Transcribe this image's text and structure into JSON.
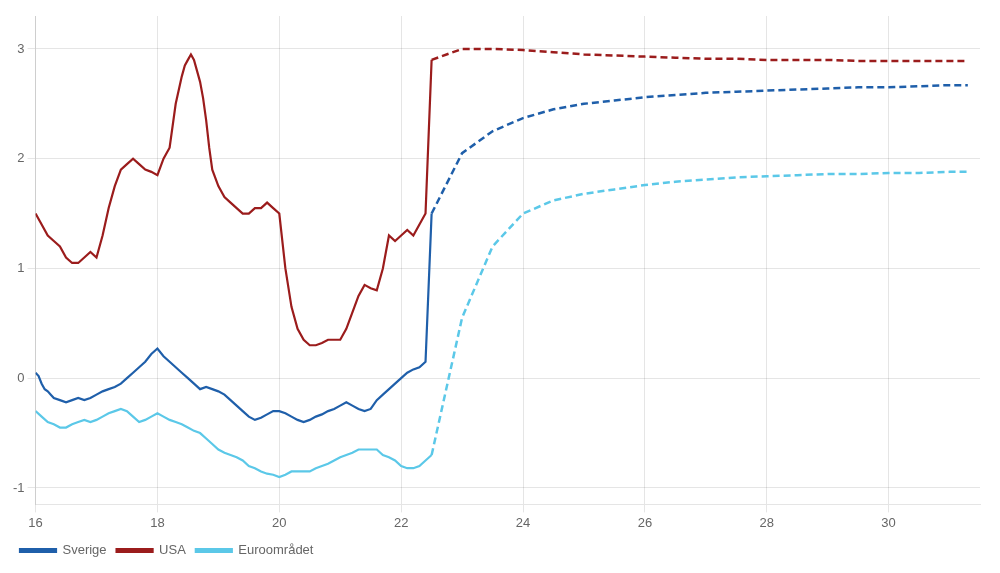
{
  "chart_data": {
    "type": "line",
    "xlim": [
      16,
      31.5
    ],
    "ylim": [
      -1.15,
      3.3
    ],
    "xticks": [
      16,
      18,
      20,
      22,
      24,
      26,
      28,
      30
    ],
    "yticks": [
      -1,
      0,
      1,
      2,
      3
    ],
    "grid": true,
    "legend": "bottom",
    "series": [
      {
        "name": "Sverige",
        "color": "#1f5faa",
        "line_style": "solid",
        "x": [
          16.0,
          16.05,
          16.1,
          16.15,
          16.2,
          16.25,
          16.3,
          16.4,
          16.5,
          16.6,
          16.7,
          16.8,
          16.9,
          17.0,
          17.1,
          17.2,
          17.3,
          17.4,
          17.5,
          17.6,
          17.7,
          17.8,
          17.9,
          18.0,
          18.1,
          18.2,
          18.3,
          18.4,
          18.5,
          18.6,
          18.7,
          18.8,
          18.9,
          19.0,
          19.1,
          19.2,
          19.3,
          19.4,
          19.5,
          19.6,
          19.7,
          19.8,
          19.9,
          20.0,
          20.1,
          20.2,
          20.3,
          20.4,
          20.5,
          20.6,
          20.7,
          20.8,
          20.9,
          21.0,
          21.1,
          21.2,
          21.3,
          21.4,
          21.5,
          21.6,
          21.7,
          21.8,
          21.9,
          22.0,
          22.1,
          22.2,
          22.3,
          22.4,
          22.5
        ],
        "values": [
          0.05,
          0.02,
          -0.05,
          -0.1,
          -0.12,
          -0.15,
          -0.18,
          -0.2,
          -0.22,
          -0.2,
          -0.18,
          -0.2,
          -0.18,
          -0.15,
          -0.12,
          -0.1,
          -0.08,
          -0.05,
          0.0,
          0.05,
          0.1,
          0.15,
          0.22,
          0.27,
          0.2,
          0.15,
          0.1,
          0.05,
          0.0,
          -0.05,
          -0.1,
          -0.08,
          -0.1,
          -0.12,
          -0.15,
          -0.2,
          -0.25,
          -0.3,
          -0.35,
          -0.38,
          -0.36,
          -0.33,
          -0.3,
          -0.3,
          -0.32,
          -0.35,
          -0.38,
          -0.4,
          -0.38,
          -0.35,
          -0.33,
          -0.3,
          -0.28,
          -0.25,
          -0.22,
          -0.25,
          -0.28,
          -0.3,
          -0.28,
          -0.2,
          -0.15,
          -0.1,
          -0.05,
          0.0,
          0.05,
          0.08,
          0.1,
          0.15,
          1.5
        ]
      },
      {
        "name": "USA",
        "color": "#9b1c1c",
        "line_style": "solid",
        "x": [
          16.0,
          16.1,
          16.2,
          16.3,
          16.4,
          16.5,
          16.6,
          16.7,
          16.8,
          16.9,
          17.0,
          17.1,
          17.2,
          17.3,
          17.4,
          17.5,
          17.6,
          17.7,
          17.8,
          17.9,
          18.0,
          18.1,
          18.2,
          18.3,
          18.4,
          18.45,
          18.5,
          18.55,
          18.6,
          18.65,
          18.7,
          18.75,
          18.8,
          18.85,
          18.9,
          19.0,
          19.1,
          19.2,
          19.3,
          19.4,
          19.5,
          19.6,
          19.7,
          19.8,
          19.9,
          20.0,
          20.1,
          20.2,
          20.3,
          20.4,
          20.5,
          20.6,
          20.7,
          20.8,
          20.9,
          21.0,
          21.1,
          21.2,
          21.3,
          21.4,
          21.5,
          21.6,
          21.7,
          21.8,
          21.9,
          22.0,
          22.1,
          22.2,
          22.3,
          22.4,
          22.5
        ],
        "values": [
          1.5,
          1.4,
          1.3,
          1.25,
          1.2,
          1.1,
          1.05,
          1.05,
          1.1,
          1.15,
          1.1,
          1.3,
          1.55,
          1.75,
          1.9,
          1.95,
          2.0,
          1.95,
          1.9,
          1.88,
          1.85,
          2.0,
          2.1,
          2.5,
          2.75,
          2.85,
          2.9,
          2.95,
          2.9,
          2.8,
          2.7,
          2.55,
          2.35,
          2.1,
          1.9,
          1.75,
          1.65,
          1.6,
          1.55,
          1.5,
          1.5,
          1.55,
          1.55,
          1.6,
          1.55,
          1.5,
          1.0,
          0.65,
          0.45,
          0.35,
          0.3,
          0.3,
          0.32,
          0.35,
          0.35,
          0.35,
          0.45,
          0.6,
          0.75,
          0.85,
          0.82,
          0.8,
          1.0,
          1.3,
          1.25,
          1.3,
          1.35,
          1.3,
          1.4,
          1.5,
          2.9
        ]
      },
      {
        "name": "Euroområdet",
        "color": "#5bc8e8",
        "line_style": "solid",
        "x": [
          16.0,
          16.1,
          16.2,
          16.3,
          16.4,
          16.5,
          16.6,
          16.7,
          16.8,
          16.9,
          17.0,
          17.1,
          17.2,
          17.3,
          17.4,
          17.5,
          17.6,
          17.7,
          17.8,
          17.9,
          18.0,
          18.1,
          18.2,
          18.3,
          18.4,
          18.5,
          18.6,
          18.7,
          18.8,
          18.9,
          19.0,
          19.1,
          19.2,
          19.3,
          19.4,
          19.5,
          19.6,
          19.7,
          19.8,
          19.9,
          20.0,
          20.1,
          20.2,
          20.3,
          20.4,
          20.5,
          20.6,
          20.7,
          20.8,
          20.9,
          21.0,
          21.1,
          21.2,
          21.3,
          21.4,
          21.5,
          21.6,
          21.7,
          21.8,
          21.9,
          22.0,
          22.1,
          22.2,
          22.3,
          22.4,
          22.5
        ],
        "values": [
          -0.3,
          -0.35,
          -0.4,
          -0.42,
          -0.45,
          -0.45,
          -0.42,
          -0.4,
          -0.38,
          -0.4,
          -0.38,
          -0.35,
          -0.32,
          -0.3,
          -0.28,
          -0.3,
          -0.35,
          -0.4,
          -0.38,
          -0.35,
          -0.32,
          -0.35,
          -0.38,
          -0.4,
          -0.42,
          -0.45,
          -0.48,
          -0.5,
          -0.55,
          -0.6,
          -0.65,
          -0.68,
          -0.7,
          -0.72,
          -0.75,
          -0.8,
          -0.82,
          -0.85,
          -0.87,
          -0.88,
          -0.9,
          -0.88,
          -0.85,
          -0.85,
          -0.85,
          -0.85,
          -0.82,
          -0.8,
          -0.78,
          -0.75,
          -0.72,
          -0.7,
          -0.68,
          -0.65,
          -0.65,
          -0.65,
          -0.65,
          -0.7,
          -0.72,
          -0.75,
          -0.8,
          -0.82,
          -0.82,
          -0.8,
          -0.75,
          -0.7
        ]
      },
      {
        "color": "#1f5faa",
        "line_style": "dashed",
        "x": [
          22.5,
          23.0,
          23.5,
          24.0,
          24.5,
          25.0,
          25.5,
          26.0,
          26.5,
          27.0,
          27.5,
          28.0,
          28.5,
          29.0,
          29.5,
          30.0,
          30.5,
          31.0,
          31.3
        ],
        "values": [
          1.5,
          2.05,
          2.25,
          2.37,
          2.45,
          2.5,
          2.53,
          2.56,
          2.58,
          2.6,
          2.61,
          2.62,
          2.63,
          2.64,
          2.65,
          2.65,
          2.66,
          2.67,
          2.67
        ]
      },
      {
        "color": "#9b1c1c",
        "line_style": "dashed",
        "x": [
          22.5,
          23.0,
          23.2,
          23.5,
          24.0,
          24.5,
          25.0,
          25.5,
          26.0,
          26.5,
          27.0,
          27.5,
          28.0,
          28.5,
          29.0,
          29.5,
          30.0,
          30.5,
          31.0,
          31.3
        ],
        "values": [
          2.9,
          3.0,
          3.0,
          3.0,
          2.99,
          2.97,
          2.95,
          2.94,
          2.93,
          2.92,
          2.91,
          2.91,
          2.9,
          2.9,
          2.9,
          2.89,
          2.89,
          2.89,
          2.89,
          2.89
        ]
      },
      {
        "color": "#5bc8e8",
        "line_style": "dashed",
        "x": [
          22.5,
          23.0,
          23.5,
          24.0,
          24.5,
          25.0,
          25.5,
          26.0,
          26.5,
          27.0,
          27.5,
          28.0,
          28.5,
          29.0,
          29.5,
          30.0,
          30.5,
          31.0,
          31.3
        ],
        "values": [
          -0.7,
          0.55,
          1.2,
          1.5,
          1.62,
          1.68,
          1.72,
          1.76,
          1.79,
          1.81,
          1.83,
          1.84,
          1.85,
          1.86,
          1.86,
          1.87,
          1.87,
          1.88,
          1.88
        ]
      }
    ]
  }
}
